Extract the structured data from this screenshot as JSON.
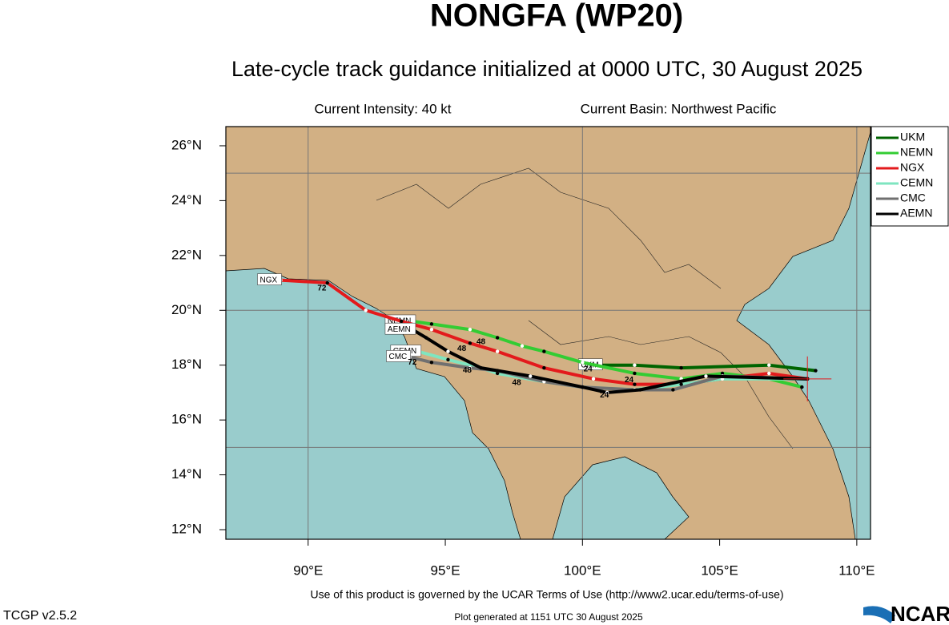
{
  "chart_data": {
    "type": "line",
    "title": "NONGFA (WP20)",
    "subtitle": "Late-cycle track guidance initialized at 0000 UTC, 30 August 2025",
    "intensity": "Current Intensity: 40 kt",
    "basin": "Current Basin: Northwest Pacific",
    "terms": "Use of this product is governed by the UCAR Terms of Use (http://www2.ucar.edu/terms-of-use)",
    "version": "TCGP v2.5.2",
    "generated": "Plot generated at 1151 UTC   30 August 2025",
    "logo": "NCAR",
    "xlim": [
      87,
      110.5
    ],
    "ylim": [
      11.65,
      26.7
    ],
    "xticks": [
      {
        "value": 90,
        "label": "90°E"
      },
      {
        "value": 95,
        "label": "95°E"
      },
      {
        "value": 100,
        "label": "100°E"
      },
      {
        "value": 105,
        "label": "105°E"
      },
      {
        "value": 110,
        "label": "110°E"
      }
    ],
    "yticks": [
      {
        "value": 12,
        "label": "12°N"
      },
      {
        "value": 14,
        "label": "14°N"
      },
      {
        "value": 16,
        "label": "16°N"
      },
      {
        "value": 18,
        "label": "18°N"
      },
      {
        "value": 20,
        "label": "20°N"
      },
      {
        "value": 22,
        "label": "22°N"
      },
      {
        "value": 24,
        "label": "24°N"
      },
      {
        "value": 26,
        "label": "26°N"
      }
    ],
    "grid_lon": [
      90,
      100,
      110
    ],
    "grid_lat": [
      15,
      20,
      25
    ],
    "legend": "upper right",
    "current_position": {
      "lon": 108.2,
      "lat": 17.5,
      "color": "#e31a1c"
    },
    "series": [
      {
        "name": "UKM",
        "color": "#006400",
        "x": [
          108.5,
          106.8,
          103.6,
          101.9,
          100.7
        ],
        "values": [
          17.8,
          18.0,
          17.9,
          18.0,
          18.0
        ]
      },
      {
        "name": "NEMN",
        "color": "#33cc33",
        "x": [
          108.0,
          106.8,
          105.1,
          103.6,
          101.9,
          100.0,
          98.6,
          97.8,
          96.9,
          95.9,
          94.5,
          93.8
        ],
        "values": [
          17.2,
          17.5,
          17.7,
          17.5,
          17.7,
          18.1,
          18.5,
          18.7,
          19.0,
          19.3,
          19.5,
          19.6
        ]
      },
      {
        "name": "NGX",
        "color": "#e31a1c",
        "x": [
          108.2,
          106.8,
          105.1,
          103.6,
          101.9,
          100.4,
          98.6,
          96.9,
          95.9,
          94.5,
          93.4,
          92.1,
          90.7,
          89.0
        ],
        "values": [
          17.5,
          17.7,
          17.5,
          17.3,
          17.3,
          17.5,
          17.9,
          18.5,
          18.8,
          19.3,
          19.6,
          20.0,
          21.0,
          21.1
        ]
      },
      {
        "name": "CEMN",
        "color": "#7fe5c0",
        "x": [
          108.2,
          105.1,
          103.6,
          101.9,
          100.0,
          98.6,
          96.9,
          96.3,
          95.1,
          94.0
        ],
        "values": [
          17.5,
          17.5,
          17.3,
          17.1,
          17.2,
          17.4,
          17.7,
          17.9,
          18.2,
          18.5
        ]
      },
      {
        "name": "CMC",
        "color": "#707070",
        "x": [
          108.2,
          105.1,
          103.3,
          101.9,
          100.0,
          98.6,
          96.9,
          95.9,
          94.5,
          93.7
        ],
        "values": [
          17.5,
          17.6,
          17.1,
          17.1,
          17.2,
          17.4,
          17.8,
          17.9,
          18.1,
          18.3
        ]
      },
      {
        "name": "AEMN",
        "color": "#000000",
        "x": [
          108.2,
          104.5,
          102.1,
          100.9,
          100.0,
          98.1,
          96.3,
          95.1,
          94.3,
          93.8
        ],
        "values": [
          17.5,
          17.6,
          17.1,
          17.0,
          17.2,
          17.6,
          17.9,
          18.5,
          19.0,
          19.3
        ]
      }
    ],
    "hour_labels": [
      {
        "text": "72",
        "lon": 90.5,
        "lat": 20.8
      },
      {
        "text": "48",
        "lon": 95.6,
        "lat": 18.6
      },
      {
        "text": "48",
        "lon": 96.3,
        "lat": 18.85
      },
      {
        "text": "24",
        "lon": 100.2,
        "lat": 17.85
      },
      {
        "text": "24",
        "lon": 101.7,
        "lat": 17.45
      },
      {
        "text": "24",
        "lon": 100.8,
        "lat": 16.9
      },
      {
        "text": "48",
        "lon": 97.6,
        "lat": 17.35
      },
      {
        "text": "72",
        "lon": 93.8,
        "lat": 18.1
      },
      {
        "text": "48",
        "lon": 95.8,
        "lat": 17.8
      }
    ]
  }
}
